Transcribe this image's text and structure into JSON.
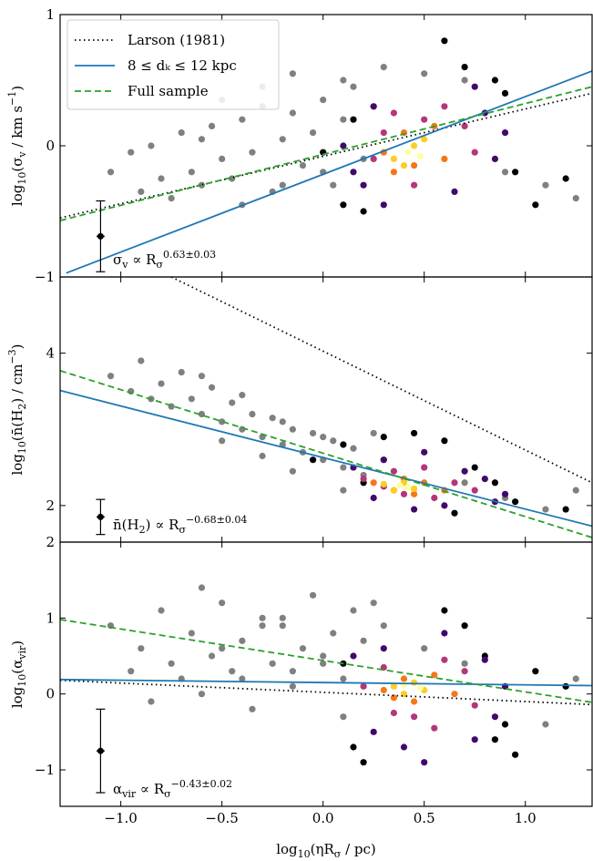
{
  "chart_data": [
    {
      "type": "scatter",
      "xlim": [
        -1.3,
        1.33
      ],
      "ylim": [
        -1,
        1
      ],
      "xticks": [
        {
          "value": -1,
          "label": "−1.0"
        },
        {
          "value": -0.5,
          "label": "−0.5"
        },
        {
          "value": 0,
          "label": "0.0"
        },
        {
          "value": 0.5,
          "label": "0.5"
        },
        {
          "value": 1,
          "label": "1.0"
        }
      ],
      "yticks": [
        {
          "value": -1,
          "label": "−1"
        },
        0,
        1
      ],
      "ylabel": [
        {
          "t": "log"
        },
        {
          "t": "10",
          "s": "sub"
        },
        {
          "t": "(σ"
        },
        {
          "t": "v",
          "s": "sub"
        },
        {
          "t": " / km s"
        },
        {
          "t": "−1",
          "s": "sup"
        },
        {
          "t": ")"
        }
      ],
      "annotation": [
        {
          "t": "σ"
        },
        {
          "t": "v",
          "s": "sub"
        },
        {
          "t": " ∝ R"
        },
        {
          "t": "σ",
          "s": "sub"
        },
        {
          "t": "0.63±0.03",
          "s": "sup"
        }
      ],
      "legend": "upper left",
      "points": [
        {
          "color": "#808080",
          "x": [
            -1.05,
            -0.95,
            -0.9,
            -0.85,
            -0.8,
            -0.75,
            -0.7,
            -0.65,
            -0.6,
            -0.55,
            -0.5,
            -0.45,
            -0.4,
            -0.35,
            -0.3,
            -0.25,
            -0.2,
            -0.15,
            -0.1,
            -0.05,
            0.0,
            0.05,
            0.1,
            0.15,
            0.2,
            -0.6,
            -0.4,
            -0.2,
            0.0,
            0.1,
            -0.3,
            -0.5,
            0.3,
            0.5,
            0.7,
            0.9,
            1.1,
            1.25,
            -0.15,
            0.25
          ],
          "values": [
            -0.2,
            -0.05,
            -0.35,
            0.0,
            -0.25,
            -0.4,
            0.1,
            -0.2,
            -0.3,
            0.15,
            -0.1,
            -0.25,
            0.2,
            -0.05,
            0.3,
            -0.35,
            0.05,
            0.25,
            -0.15,
            0.1,
            0.35,
            -0.3,
            0.2,
            0.45,
            -0.1,
            0.05,
            -0.45,
            -0.3,
            -0.2,
            0.5,
            0.45,
            0.35,
            0.6,
            0.55,
            0.5,
            -0.2,
            -0.3,
            -0.4,
            0.55,
            0.3
          ]
        },
        {
          "color": "#000004",
          "x": [
            0.0,
            0.1,
            0.2,
            0.7,
            0.85,
            0.95,
            1.05,
            0.6,
            0.15,
            0.9,
            1.2
          ],
          "values": [
            -0.05,
            -0.45,
            -0.5,
            0.6,
            0.5,
            -0.2,
            -0.45,
            0.8,
            0.2,
            0.4,
            -0.25
          ]
        },
        {
          "color": "#420a68",
          "x": [
            0.1,
            0.2,
            0.25,
            0.8,
            0.85,
            0.75,
            0.3,
            0.9,
            0.65,
            0.15
          ],
          "values": [
            0.0,
            -0.3,
            0.3,
            0.25,
            -0.1,
            0.45,
            -0.45,
            0.1,
            -0.35,
            -0.2
          ]
        },
        {
          "color": "#b5367a",
          "x": [
            0.25,
            0.35,
            0.7,
            0.75,
            0.45,
            0.6,
            0.3,
            0.5
          ],
          "values": [
            -0.1,
            0.25,
            0.15,
            -0.05,
            -0.3,
            0.3,
            0.1,
            0.2
          ]
        },
        {
          "color": "#f37819",
          "x": [
            0.3,
            0.4,
            0.55,
            0.6,
            0.45,
            0.35
          ],
          "values": [
            -0.05,
            0.1,
            0.15,
            -0.1,
            -0.15,
            -0.2
          ]
        },
        {
          "color": "#fcce25",
          "x": [
            0.35,
            0.45,
            0.5,
            0.4
          ],
          "values": [
            -0.1,
            0.0,
            0.05,
            -0.15
          ]
        },
        {
          "color": "#fcffa4",
          "x": [
            0.42,
            0.48
          ],
          "values": [
            -0.05,
            -0.08
          ]
        }
      ],
      "series": [
        {
          "name": "Larson (1981)",
          "color": "#000000",
          "dash": "dotted",
          "x": [
            -1.3,
            1.33
          ],
          "values": [
            -0.55,
            0.4
          ]
        },
        {
          "name": "8 ≤ dₖ ≤ 12 kpc",
          "color": "#1f77b4",
          "dash": "solid",
          "x": [
            -1.27,
            1.33
          ],
          "values": [
            -0.97,
            0.57
          ]
        },
        {
          "name": "Full sample",
          "color": "#2ca02c",
          "dash": "dashed",
          "x": [
            -1.3,
            1.33
          ],
          "values": [
            -0.57,
            0.45
          ]
        }
      ],
      "errorbar": {
        "x": -1.1,
        "y": -0.69,
        "xerr": 0.02,
        "yerr": 0.27
      }
    },
    {
      "type": "scatter",
      "xlim": [
        -1.3,
        1.33
      ],
      "ylim": [
        1.52,
        5.0
      ],
      "xticks": [
        {
          "value": -1,
          "label": "−1.0"
        },
        {
          "value": -0.5,
          "label": "−0.5"
        },
        {
          "value": 0,
          "label": "0.0"
        },
        {
          "value": 0.5,
          "label": "0.5"
        },
        {
          "value": 1,
          "label": "1.0"
        }
      ],
      "yticks": [
        2,
        4
      ],
      "ylabel": [
        {
          "t": "log"
        },
        {
          "t": "10",
          "s": "sub"
        },
        {
          "t": "(n̄(H"
        },
        {
          "t": "2",
          "s": "sub"
        },
        {
          "t": ") / cm"
        },
        {
          "t": "−3",
          "s": "sup"
        },
        {
          "t": ")"
        }
      ],
      "annotation": [
        {
          "t": "n̄(H"
        },
        {
          "t": "2",
          "s": "sub"
        },
        {
          "t": ") ∝ R"
        },
        {
          "t": "σ",
          "s": "sub"
        },
        {
          "t": "−0.68±0.04",
          "s": "sup"
        }
      ],
      "points": [
        {
          "color": "#808080",
          "x": [
            -1.05,
            -0.95,
            -0.9,
            -0.85,
            -0.8,
            -0.75,
            -0.7,
            -0.65,
            -0.6,
            -0.55,
            -0.5,
            -0.45,
            -0.4,
            -0.35,
            -0.3,
            -0.25,
            -0.2,
            -0.15,
            -0.1,
            -0.05,
            0.0,
            0.05,
            0.1,
            0.15,
            0.2,
            -0.6,
            -0.4,
            -0.2,
            0.0,
            0.1,
            -0.3,
            -0.5,
            0.3,
            0.5,
            0.7,
            0.9,
            1.1,
            1.25,
            -0.15,
            0.25
          ],
          "values": [
            3.7,
            3.5,
            3.9,
            3.4,
            3.6,
            3.3,
            3.75,
            3.4,
            3.2,
            3.55,
            3.1,
            3.35,
            3.0,
            3.2,
            2.9,
            3.15,
            2.8,
            3.0,
            2.7,
            2.95,
            2.6,
            2.85,
            2.5,
            2.75,
            2.4,
            3.7,
            3.45,
            3.1,
            2.9,
            2.2,
            2.65,
            2.85,
            2.6,
            2.5,
            2.3,
            2.1,
            1.95,
            2.2,
            2.45,
            2.95
          ]
        },
        {
          "color": "#000004",
          "x": [
            0.1,
            0.3,
            0.45,
            0.6,
            0.75,
            0.85,
            0.95,
            1.2,
            0.2,
            0.65,
            -0.05
          ],
          "values": [
            2.8,
            2.9,
            2.95,
            2.85,
            2.5,
            2.3,
            2.05,
            1.95,
            2.3,
            1.9,
            2.6
          ]
        },
        {
          "color": "#420a68",
          "x": [
            0.15,
            0.3,
            0.5,
            0.7,
            0.8,
            0.9,
            0.25,
            0.6,
            0.45,
            0.85
          ],
          "values": [
            2.5,
            2.6,
            2.7,
            2.45,
            2.35,
            2.15,
            2.1,
            2.0,
            1.95,
            2.05
          ]
        },
        {
          "color": "#b5367a",
          "x": [
            0.2,
            0.35,
            0.5,
            0.65,
            0.75,
            0.4,
            0.55,
            0.3
          ],
          "values": [
            2.35,
            2.45,
            2.5,
            2.3,
            2.2,
            2.15,
            2.1,
            2.25
          ]
        },
        {
          "color": "#f37819",
          "x": [
            0.25,
            0.4,
            0.5,
            0.6,
            0.35,
            0.45
          ],
          "values": [
            2.3,
            2.35,
            2.3,
            2.2,
            2.2,
            2.15
          ]
        },
        {
          "color": "#fcce25",
          "x": [
            0.3,
            0.4,
            0.45,
            0.35
          ],
          "values": [
            2.28,
            2.3,
            2.22,
            2.2
          ]
        },
        {
          "color": "#fcffa4",
          "x": [
            0.38,
            0.42
          ],
          "values": [
            2.26,
            2.24
          ]
        }
      ],
      "series": [
        {
          "color": "#000000",
          "dash": "dotted",
          "x": [
            -0.75,
            1.33
          ],
          "values": [
            5.0,
            2.3
          ]
        },
        {
          "color": "#1f77b4",
          "dash": "solid",
          "x": [
            -1.3,
            1.33
          ],
          "values": [
            3.51,
            1.73
          ]
        },
        {
          "color": "#2ca02c",
          "dash": "dashed",
          "x": [
            -1.3,
            1.33
          ],
          "values": [
            3.77,
            1.58
          ]
        }
      ],
      "errorbar": {
        "x": -1.1,
        "y": 1.85,
        "xerr": 0.02,
        "yerr": 0.23
      }
    },
    {
      "type": "scatter",
      "xlim": [
        -1.3,
        1.33
      ],
      "ylim": [
        -1.48,
        2.0
      ],
      "xticks": [
        {
          "value": -1,
          "label": "−1.0"
        },
        {
          "value": -0.5,
          "label": "−0.5"
        },
        {
          "value": 0,
          "label": "0.0"
        },
        {
          "value": 0.5,
          "label": "0.5"
        },
        {
          "value": 1,
          "label": "1.0"
        }
      ],
      "yticks": [
        {
          "value": -1,
          "label": "−1"
        },
        0,
        1,
        2
      ],
      "ylabel": [
        {
          "t": "log"
        },
        {
          "t": "10",
          "s": "sub"
        },
        {
          "t": "(α"
        },
        {
          "t": "vir",
          "s": "sub"
        },
        {
          "t": ")"
        }
      ],
      "xlabel": [
        {
          "t": "log"
        },
        {
          "t": "10",
          "s": "sub"
        },
        {
          "t": "(ηR"
        },
        {
          "t": "σ",
          "s": "sub"
        },
        {
          "t": " / pc)"
        }
      ],
      "annotation": [
        {
          "t": "α"
        },
        {
          "t": "vir",
          "s": "sub"
        },
        {
          "t": " ∝ R"
        },
        {
          "t": "σ",
          "s": "sub"
        },
        {
          "t": "−0.43±0.02",
          "s": "sup"
        }
      ],
      "points": [
        {
          "color": "#808080",
          "x": [
            -1.05,
            -0.95,
            -0.9,
            -0.85,
            -0.8,
            -0.75,
            -0.7,
            -0.65,
            -0.6,
            -0.55,
            -0.5,
            -0.45,
            -0.4,
            -0.35,
            -0.3,
            -0.25,
            -0.2,
            -0.15,
            -0.1,
            -0.05,
            0.0,
            0.05,
            0.1,
            0.15,
            0.2,
            -0.6,
            -0.4,
            -0.2,
            0.0,
            0.1,
            -0.3,
            -0.5,
            0.3,
            0.5,
            0.7,
            0.9,
            1.1,
            1.25,
            -0.15,
            0.25
          ],
          "values": [
            0.9,
            0.3,
            0.6,
            -0.1,
            1.1,
            0.4,
            0.2,
            0.8,
            0.0,
            0.5,
            1.2,
            0.3,
            0.7,
            -0.2,
            0.9,
            0.4,
            1.0,
            0.1,
            0.6,
            1.3,
            0.5,
            0.8,
            0.2,
            1.1,
            0.7,
            1.4,
            0.2,
            0.9,
            0.4,
            -0.3,
            1.0,
            0.6,
            0.9,
            0.6,
            0.4,
            0.1,
            -0.4,
            0.2,
            0.3,
            1.2
          ]
        },
        {
          "color": "#000004",
          "x": [
            0.1,
            0.15,
            0.2,
            0.7,
            0.85,
            0.95,
            1.05,
            0.6,
            0.8,
            0.9,
            1.2
          ],
          "values": [
            0.4,
            -0.7,
            -0.9,
            0.9,
            -0.6,
            -0.8,
            0.3,
            1.1,
            0.5,
            -0.4,
            0.1
          ]
        },
        {
          "color": "#420a68",
          "x": [
            0.15,
            0.25,
            0.3,
            0.8,
            0.85,
            0.75,
            0.4,
            0.9,
            0.6,
            0.5
          ],
          "values": [
            0.5,
            -0.5,
            0.6,
            0.45,
            -0.3,
            -0.6,
            -0.7,
            0.1,
            0.8,
            -0.9
          ]
        },
        {
          "color": "#b5367a",
          "x": [
            0.2,
            0.3,
            0.7,
            0.75,
            0.45,
            0.6,
            0.35,
            0.55
          ],
          "values": [
            0.1,
            0.35,
            0.3,
            -0.15,
            -0.3,
            0.45,
            -0.25,
            -0.45
          ]
        },
        {
          "color": "#f37819",
          "x": [
            0.3,
            0.4,
            0.55,
            0.65,
            0.45,
            0.35
          ],
          "values": [
            0.05,
            0.2,
            0.25,
            0.0,
            -0.1,
            -0.05
          ]
        },
        {
          "color": "#fcce25",
          "x": [
            0.35,
            0.45,
            0.5,
            0.4
          ],
          "values": [
            0.1,
            0.15,
            0.05,
            0.0
          ]
        },
        {
          "color": "#fcffa4",
          "x": [
            0.4,
            0.48
          ],
          "values": [
            0.12,
            0.08
          ]
        }
      ],
      "series": [
        {
          "color": "#000000",
          "dash": "dotted",
          "x": [
            -1.3,
            1.33
          ],
          "values": [
            0.18,
            -0.14
          ]
        },
        {
          "color": "#1f77b4",
          "dash": "solid",
          "x": [
            -1.3,
            1.33
          ],
          "values": [
            0.19,
            0.11
          ]
        },
        {
          "color": "#2ca02c",
          "dash": "dashed",
          "x": [
            -1.3,
            1.33
          ],
          "values": [
            0.98,
            -0.11
          ]
        }
      ],
      "errorbar": {
        "x": -1.1,
        "y": -0.75,
        "xerr": 0.02,
        "yerr": 0.55
      }
    }
  ]
}
